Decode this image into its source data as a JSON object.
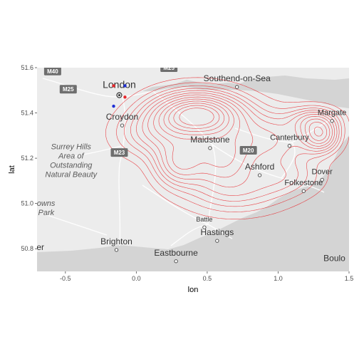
{
  "chart_data": {
    "type": "map-density-contour",
    "xlabel": "lon",
    "ylabel": "lat",
    "xlim": [
      -0.7,
      1.5
    ],
    "ylim": [
      50.7,
      51.6
    ],
    "x_ticks": [
      {
        "value": -0.5,
        "label": "-0.5"
      },
      {
        "value": 0.0,
        "label": "0.0"
      },
      {
        "value": 0.5,
        "label": "0.5"
      },
      {
        "value": 1.0,
        "label": "1.0"
      },
      {
        "value": 1.5,
        "label": "1.5"
      }
    ],
    "y_ticks": [
      {
        "value": 50.8,
        "label": "50.8"
      },
      {
        "value": 51.0,
        "label": "51.0"
      },
      {
        "value": 51.2,
        "label": "51.2"
      },
      {
        "value": 51.4,
        "label": "51.4"
      },
      {
        "value": 51.6,
        "label": "51.6"
      }
    ],
    "contour_color": "#e8262b",
    "points": [
      {
        "lon": -0.16,
        "lat": 51.52,
        "color": "#e8262b"
      },
      {
        "lon": -0.08,
        "lat": 51.52,
        "color": "#1f2fd6"
      },
      {
        "lon": -0.08,
        "lat": 51.47,
        "color": "#e8262b"
      },
      {
        "lon": -0.16,
        "lat": 51.43,
        "color": "#1f2fd6"
      }
    ],
    "density_peaks": [
      {
        "lon": 0.43,
        "lat": 51.39,
        "amp": 1.0,
        "sx": 0.22,
        "sy": 0.07
      },
      {
        "lon": 0.3,
        "lat": 51.18,
        "amp": 0.45,
        "sx": 0.12,
        "sy": 0.07
      },
      {
        "lon": 0.6,
        "lat": 51.2,
        "amp": 0.45,
        "sx": 0.15,
        "sy": 0.08
      },
      {
        "lon": 0.95,
        "lat": 51.28,
        "amp": 0.35,
        "sx": 0.2,
        "sy": 0.08
      },
      {
        "lon": 1.3,
        "lat": 51.3,
        "amp": 0.55,
        "sx": 0.09,
        "sy": 0.05
      },
      {
        "lon": 1.25,
        "lat": 51.37,
        "amp": 0.3,
        "sx": 0.12,
        "sy": 0.04
      },
      {
        "lon": 0.1,
        "lat": 51.3,
        "amp": 0.25,
        "sx": 0.18,
        "sy": 0.07
      },
      {
        "lon": 0.7,
        "lat": 51.05,
        "amp": 0.25,
        "sx": 0.25,
        "sy": 0.07
      },
      {
        "lon": 1.05,
        "lat": 51.12,
        "amp": 0.2,
        "sx": 0.18,
        "sy": 0.06
      }
    ],
    "contour_levels": [
      0.06,
      0.12,
      0.18,
      0.24,
      0.3,
      0.37,
      0.44,
      0.52,
      0.6,
      0.68,
      0.76,
      0.84,
      0.92
    ]
  },
  "map": {
    "places": [
      {
        "name": "London",
        "lon": -0.12,
        "lat": 51.51,
        "size": 14,
        "marker": "target"
      },
      {
        "name": "Southend-on-Sea",
        "lon": 0.71,
        "lat": 51.54,
        "size": 12,
        "marker": "circle"
      },
      {
        "name": "Croydon",
        "lon": -0.1,
        "lat": 51.37,
        "size": 12,
        "marker": "circle"
      },
      {
        "name": "Margate",
        "lon": 1.38,
        "lat": 51.39,
        "size": 11,
        "marker": "circle"
      },
      {
        "name": "Maidstone",
        "lon": 0.52,
        "lat": 51.27,
        "size": 12,
        "marker": "circle"
      },
      {
        "name": "Canterbury",
        "lon": 1.08,
        "lat": 51.28,
        "size": 11,
        "marker": "circle"
      },
      {
        "name": "Ashford",
        "lon": 0.87,
        "lat": 51.15,
        "size": 12,
        "marker": "circle"
      },
      {
        "name": "Dover",
        "lon": 1.31,
        "lat": 51.13,
        "size": 11,
        "marker": "circle"
      },
      {
        "name": "Folkestone",
        "lon": 1.18,
        "lat": 51.08,
        "size": 11,
        "marker": "circle"
      },
      {
        "name": "Battle",
        "lon": 0.48,
        "lat": 50.92,
        "size": 9,
        "marker": "circle"
      },
      {
        "name": "Hastings",
        "lon": 0.57,
        "lat": 50.86,
        "size": 12,
        "marker": "circle"
      },
      {
        "name": "Brighton",
        "lon": -0.14,
        "lat": 50.82,
        "size": 12,
        "marker": "circle"
      },
      {
        "name": "Eastbourne",
        "lon": 0.28,
        "lat": 50.77,
        "size": 12,
        "marker": "circle"
      }
    ],
    "partial_labels": [
      {
        "text": "ster",
        "lon": -0.75,
        "lat": 50.795,
        "size": 12
      },
      {
        "text": "Boulo",
        "lon": 1.32,
        "lat": 50.745,
        "size": 12
      }
    ],
    "aonb_labels": [
      {
        "lines": [
          "Surrey Hills",
          "Area of",
          "Outstanding",
          "Natural Beauty"
        ],
        "lon": -0.46,
        "lat": 51.24
      },
      {
        "lines": [
          "h Downs",
          "nal Park"
        ],
        "lon": -0.68,
        "lat": 50.99
      }
    ],
    "roads": [
      {
        "label": "M40",
        "lon": -0.59,
        "lat": 51.585
      },
      {
        "label": "M25",
        "lon": -0.48,
        "lat": 51.505
      },
      {
        "label": "M23",
        "lon": -0.12,
        "lat": 51.225
      },
      {
        "label": "M20",
        "lon": 0.79,
        "lat": 51.235
      },
      {
        "label": "M25",
        "lon": 0.23,
        "lat": 51.6
      }
    ]
  }
}
